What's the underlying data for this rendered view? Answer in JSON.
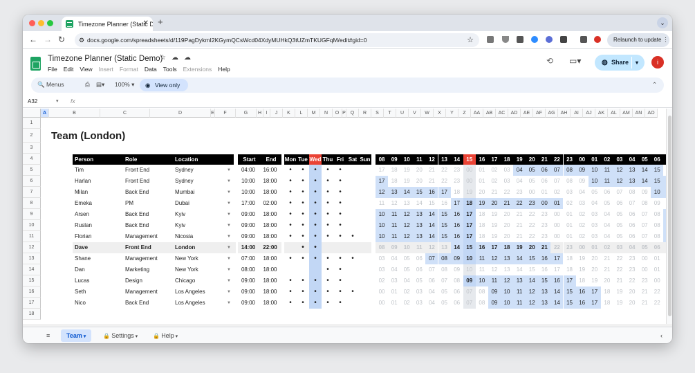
{
  "browser": {
    "tab_title": "Timezone Planner (Static De",
    "url": "docs.google.com/spreadsheets/d/119PagDykmI2KGymQCsWcd04XdyMUHkQ3tUZmTKUGFqM/edit#gid=0",
    "relaunch_label": "Relaunch to update",
    "avatar_letter": "i"
  },
  "app": {
    "title": "Timezone Planner (Static Demo)",
    "menus": [
      {
        "label": "File",
        "disabled": false
      },
      {
        "label": "Edit",
        "disabled": false
      },
      {
        "label": "View",
        "disabled": false
      },
      {
        "label": "Insert",
        "disabled": true
      },
      {
        "label": "Format",
        "disabled": true
      },
      {
        "label": "Data",
        "disabled": false
      },
      {
        "label": "Tools",
        "disabled": false
      },
      {
        "label": "Extensions",
        "disabled": true
      },
      {
        "label": "Help",
        "disabled": false
      }
    ],
    "share_label": "Share"
  },
  "toolbar": {
    "search_label": "Menus",
    "zoom": "100%",
    "view_only_label": "View only"
  },
  "formula_bar": {
    "name_box": "A32",
    "fx": "fx"
  },
  "grid": {
    "columns": [
      "A",
      "B",
      "C",
      "D",
      "E",
      "F",
      "G",
      "H",
      "I",
      "J",
      "K",
      "L",
      "M",
      "N",
      "O",
      "P",
      "Q",
      "R",
      "S",
      "T",
      "U",
      "V",
      "W",
      "X",
      "Y",
      "Z",
      "AA",
      "AB",
      "AC",
      "AD",
      "AE",
      "AF",
      "AG",
      "AH",
      "AI",
      "AJ",
      "AK",
      "AL",
      "AM",
      "AN",
      "AO"
    ],
    "selected_column": "A",
    "rows": [
      "1",
      "2",
      "3",
      "4",
      "5",
      "6",
      "7",
      "8",
      "9",
      "10",
      "11",
      "12",
      "13",
      "14",
      "15",
      "16",
      "17",
      "18"
    ]
  },
  "sheet": {
    "title": "Team (London)",
    "headers": {
      "person": "Person",
      "role": "Role",
      "location": "Location",
      "start": "Start",
      "end": "End",
      "days": [
        "Mon",
        "Tue",
        "Wed",
        "Thu",
        "Fri",
        "Sat",
        "Sun"
      ],
      "hours": [
        "08",
        "09",
        "10",
        "11",
        "12",
        "13",
        "14",
        "15",
        "16",
        "17",
        "18",
        "19",
        "20",
        "21",
        "22",
        "23",
        "00",
        "01",
        "02",
        "03",
        "04",
        "05",
        "06",
        "07"
      ]
    },
    "highlight_day_index": 2,
    "highlight_hour_index": 7,
    "people": [
      {
        "person": "Tim",
        "role": "Front End",
        "location": "Sydney",
        "start": "04:00",
        "end": "16:00",
        "days": [
          1,
          1,
          1,
          1,
          1,
          0,
          0
        ],
        "hours": [
          "17",
          "18",
          "19",
          "20",
          "21",
          "22",
          "23",
          "00",
          "01",
          "02",
          "03",
          "04",
          "05",
          "06",
          "07",
          "08",
          "09",
          "10",
          "11",
          "12",
          "13",
          "14",
          "15",
          "16"
        ],
        "on": [
          0,
          0,
          0,
          0,
          0,
          0,
          0,
          0,
          0,
          0,
          0,
          1,
          1,
          1,
          1,
          1,
          1,
          1,
          1,
          1,
          1,
          1,
          1,
          0
        ],
        "bold": []
      },
      {
        "person": "Harlan",
        "role": "Front End",
        "location": "Sydney",
        "start": "10:00",
        "end": "18:00",
        "days": [
          1,
          1,
          1,
          1,
          1,
          0,
          0
        ],
        "hours": [
          "17",
          "18",
          "19",
          "20",
          "21",
          "22",
          "23",
          "00",
          "01",
          "02",
          "03",
          "04",
          "05",
          "06",
          "07",
          "08",
          "09",
          "10",
          "11",
          "12",
          "13",
          "14",
          "15",
          "16"
        ],
        "on": [
          1,
          0,
          0,
          0,
          0,
          0,
          0,
          0,
          0,
          0,
          0,
          0,
          0,
          0,
          0,
          0,
          0,
          1,
          1,
          1,
          1,
          1,
          1,
          1
        ],
        "bold": []
      },
      {
        "person": "Milan",
        "role": "Back End",
        "location": "Mumbai",
        "start": "10:00",
        "end": "18:00",
        "days": [
          1,
          1,
          1,
          1,
          1,
          0,
          0
        ],
        "hours": [
          "12",
          "13",
          "14",
          "15",
          "16",
          "17",
          "18",
          "19",
          "20",
          "21",
          "22",
          "23",
          "00",
          "01",
          "02",
          "03",
          "04",
          "05",
          "06",
          "07",
          "08",
          "09",
          "10",
          "11"
        ],
        "on": [
          1,
          1,
          1,
          1,
          1,
          1,
          0,
          0,
          0,
          0,
          0,
          0,
          0,
          0,
          0,
          0,
          0,
          0,
          0,
          0,
          0,
          0,
          1,
          1
        ],
        "bold": []
      },
      {
        "person": "Emeka",
        "role": "PM",
        "location": "Dubai",
        "start": "17:00",
        "end": "02:00",
        "days": [
          1,
          1,
          1,
          1,
          1,
          0,
          0
        ],
        "hours": [
          "11",
          "12",
          "13",
          "14",
          "15",
          "16",
          "17",
          "18",
          "19",
          "20",
          "21",
          "22",
          "23",
          "00",
          "01",
          "02",
          "03",
          "04",
          "05",
          "06",
          "07",
          "08",
          "09",
          "10"
        ],
        "on": [
          0,
          0,
          0,
          0,
          0,
          0,
          1,
          1,
          1,
          1,
          1,
          1,
          1,
          1,
          1,
          0,
          0,
          0,
          0,
          0,
          0,
          0,
          0,
          0
        ],
        "bold": [
          7
        ]
      },
      {
        "person": "Arsen",
        "role": "Back End",
        "location": "Kyiv",
        "start": "09:00",
        "end": "18:00",
        "days": [
          1,
          1,
          1,
          1,
          1,
          0,
          0
        ],
        "hours": [
          "10",
          "11",
          "12",
          "13",
          "14",
          "15",
          "16",
          "17",
          "18",
          "19",
          "20",
          "21",
          "22",
          "23",
          "00",
          "01",
          "02",
          "03",
          "04",
          "05",
          "06",
          "07",
          "08",
          "09"
        ],
        "on": [
          1,
          1,
          1,
          1,
          1,
          1,
          1,
          1,
          0,
          0,
          0,
          0,
          0,
          0,
          0,
          0,
          0,
          0,
          0,
          0,
          0,
          0,
          0,
          1
        ],
        "bold": [
          7,
          23
        ]
      },
      {
        "person": "Ruslan",
        "role": "Back End",
        "location": "Kyiv",
        "start": "09:00",
        "end": "18:00",
        "days": [
          1,
          1,
          1,
          1,
          1,
          0,
          0
        ],
        "hours": [
          "10",
          "11",
          "12",
          "13",
          "14",
          "15",
          "16",
          "17",
          "18",
          "19",
          "20",
          "21",
          "22",
          "23",
          "00",
          "01",
          "02",
          "03",
          "04",
          "05",
          "06",
          "07",
          "08",
          "09"
        ],
        "on": [
          1,
          1,
          1,
          1,
          1,
          1,
          1,
          1,
          0,
          0,
          0,
          0,
          0,
          0,
          0,
          0,
          0,
          0,
          0,
          0,
          0,
          0,
          0,
          1
        ],
        "bold": [
          7,
          23
        ]
      },
      {
        "person": "Florian",
        "role": "Management",
        "location": "Nicosia",
        "start": "09:00",
        "end": "18:00",
        "days": [
          1,
          1,
          1,
          1,
          1,
          1,
          0
        ],
        "hours": [
          "10",
          "11",
          "12",
          "13",
          "14",
          "15",
          "16",
          "17",
          "18",
          "19",
          "20",
          "21",
          "22",
          "23",
          "00",
          "01",
          "02",
          "03",
          "04",
          "05",
          "06",
          "07",
          "08",
          "09"
        ],
        "on": [
          1,
          1,
          1,
          1,
          1,
          1,
          1,
          1,
          0,
          0,
          0,
          0,
          0,
          0,
          0,
          0,
          0,
          0,
          0,
          0,
          0,
          0,
          0,
          1
        ],
        "bold": [
          7,
          23
        ]
      },
      {
        "person": "Dave",
        "role": "Front End",
        "location": "London",
        "start": "14:00",
        "end": "22:00",
        "days": [
          0,
          1,
          1,
          0,
          0,
          0,
          0
        ],
        "hours": [
          "08",
          "09",
          "10",
          "11",
          "12",
          "13",
          "14",
          "15",
          "16",
          "17",
          "18",
          "19",
          "20",
          "21",
          "22",
          "23",
          "00",
          "01",
          "02",
          "03",
          "04",
          "05",
          "06",
          "07"
        ],
        "on": [
          0,
          0,
          0,
          0,
          0,
          0,
          1,
          1,
          1,
          1,
          1,
          1,
          1,
          1,
          0,
          0,
          0,
          0,
          0,
          0,
          0,
          0,
          0,
          0
        ],
        "bold": [
          7
        ],
        "self": true
      },
      {
        "person": "Shane",
        "role": "Management",
        "location": "New York",
        "start": "07:00",
        "end": "18:00",
        "days": [
          1,
          1,
          1,
          1,
          1,
          1,
          0
        ],
        "hours": [
          "03",
          "04",
          "05",
          "06",
          "07",
          "08",
          "09",
          "10",
          "11",
          "12",
          "13",
          "14",
          "15",
          "16",
          "17",
          "18",
          "19",
          "20",
          "21",
          "22",
          "23",
          "00",
          "01",
          "02"
        ],
        "on": [
          0,
          0,
          0,
          0,
          1,
          1,
          1,
          1,
          1,
          1,
          1,
          1,
          1,
          1,
          1,
          0,
          0,
          0,
          0,
          0,
          0,
          0,
          0,
          0
        ],
        "bold": [
          7
        ]
      },
      {
        "person": "Dan",
        "role": "Marketing",
        "location": "New York",
        "start": "08:00",
        "end": "18:00",
        "days": [
          0,
          0,
          0,
          1,
          1,
          0,
          0
        ],
        "hours": [
          "03",
          "04",
          "05",
          "06",
          "07",
          "08",
          "09",
          "10",
          "11",
          "12",
          "13",
          "14",
          "15",
          "16",
          "17",
          "18",
          "19",
          "20",
          "21",
          "22",
          "23",
          "00",
          "01",
          "02"
        ],
        "on": [
          0,
          0,
          0,
          0,
          0,
          0,
          0,
          0,
          0,
          0,
          0,
          0,
          0,
          0,
          0,
          0,
          0,
          0,
          0,
          0,
          0,
          0,
          0,
          0
        ],
        "bold": []
      },
      {
        "person": "Lucas",
        "role": "Design",
        "location": "Chicago",
        "start": "09:00",
        "end": "18:00",
        "days": [
          1,
          1,
          1,
          1,
          1,
          0,
          0
        ],
        "hours": [
          "02",
          "03",
          "04",
          "05",
          "06",
          "07",
          "08",
          "09",
          "10",
          "11",
          "12",
          "13",
          "14",
          "15",
          "16",
          "17",
          "18",
          "19",
          "20",
          "21",
          "22",
          "23",
          "00",
          "01"
        ],
        "on": [
          0,
          0,
          0,
          0,
          0,
          0,
          0,
          1,
          1,
          1,
          1,
          1,
          1,
          1,
          1,
          1,
          0,
          0,
          0,
          0,
          0,
          0,
          0,
          0
        ],
        "bold": [
          7
        ]
      },
      {
        "person": "Seth",
        "role": "Management",
        "location": "Los Angeles",
        "start": "09:00",
        "end": "18:00",
        "days": [
          1,
          1,
          1,
          1,
          1,
          1,
          0
        ],
        "hours": [
          "00",
          "01",
          "02",
          "03",
          "04",
          "05",
          "06",
          "07",
          "08",
          "09",
          "10",
          "11",
          "12",
          "13",
          "14",
          "15",
          "16",
          "17",
          "18",
          "19",
          "20",
          "21",
          "22",
          "23"
        ],
        "on": [
          0,
          0,
          0,
          0,
          0,
          0,
          0,
          0,
          0,
          1,
          1,
          1,
          1,
          1,
          1,
          1,
          1,
          1,
          0,
          0,
          0,
          0,
          0,
          0
        ],
        "bold": []
      },
      {
        "person": "Nico",
        "role": "Back End",
        "location": "Los Angeles",
        "start": "09:00",
        "end": "18:00",
        "days": [
          1,
          1,
          1,
          1,
          1,
          0,
          0
        ],
        "hours": [
          "00",
          "01",
          "02",
          "03",
          "04",
          "05",
          "06",
          "07",
          "08",
          "09",
          "10",
          "11",
          "12",
          "13",
          "14",
          "15",
          "16",
          "17",
          "18",
          "19",
          "20",
          "21",
          "22",
          "23"
        ],
        "on": [
          0,
          0,
          0,
          0,
          0,
          0,
          0,
          0,
          0,
          1,
          1,
          1,
          1,
          1,
          1,
          1,
          1,
          1,
          0,
          0,
          0,
          0,
          0,
          0
        ],
        "bold": []
      }
    ]
  },
  "sheet_tabs": [
    {
      "label": "Team",
      "active": true,
      "lock": false
    },
    {
      "label": "Settings",
      "active": false,
      "lock": true
    },
    {
      "label": "Help",
      "active": false,
      "lock": true
    }
  ],
  "colors": {
    "on": "#cfe0f8",
    "highlight_col": "#c2d7f5",
    "highlight_hdr": "#ea4335",
    "self_row": "#efefef",
    "muted": "#c0c4c9"
  }
}
